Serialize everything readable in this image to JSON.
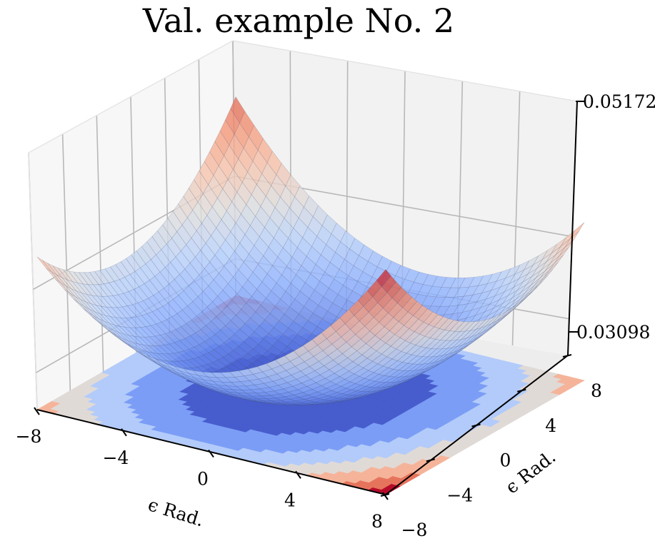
{
  "title": "Val. example No. 2",
  "chart_data": {
    "type": "surface3d",
    "title": "Val. example No. 2",
    "xlabel": "$\\epsilon$ Rad.",
    "ylabel": "$\\epsilon$ Rad.",
    "x_label_text": "ϵ Rad.",
    "y_label_text": "ϵ Rad.",
    "xlim": [
      -8,
      8
    ],
    "ylim": [
      -8,
      8
    ],
    "zlim": [
      0.03098,
      0.05172
    ],
    "x_ticks": [
      -8,
      -4,
      0,
      4,
      8
    ],
    "y_ticks": [
      -8,
      -4,
      0,
      4,
      8
    ],
    "z_ticks": [
      0.03098,
      0.05172
    ],
    "x_tick_labels": [
      "−8",
      "−4",
      "0",
      "4",
      "8"
    ],
    "y_tick_labels": [
      "−8",
      "−4",
      "0",
      "4",
      "8"
    ],
    "z_tick_labels": [
      "0.03098",
      "0.05172"
    ],
    "colormap": "coolwarm",
    "surface": {
      "description_values": "approximate loss surface z(x,y) sampled on a grid",
      "x": [
        -8,
        -6,
        -4,
        -2,
        0,
        2,
        4,
        6,
        8
      ],
      "y": [
        -8,
        -6,
        -4,
        -2,
        0,
        2,
        4,
        6,
        8
      ],
      "z_min": 0.031,
      "z_max": 0.0517,
      "corner_values": {
        "x-8_y-8": 0.043,
        "x8_y-8": 0.0517,
        "x-8_y8": 0.0505,
        "x8_y8": 0.0425
      }
    },
    "contour_projection": {
      "offset": 0.03098,
      "levels": 7
    },
    "grid": true
  }
}
